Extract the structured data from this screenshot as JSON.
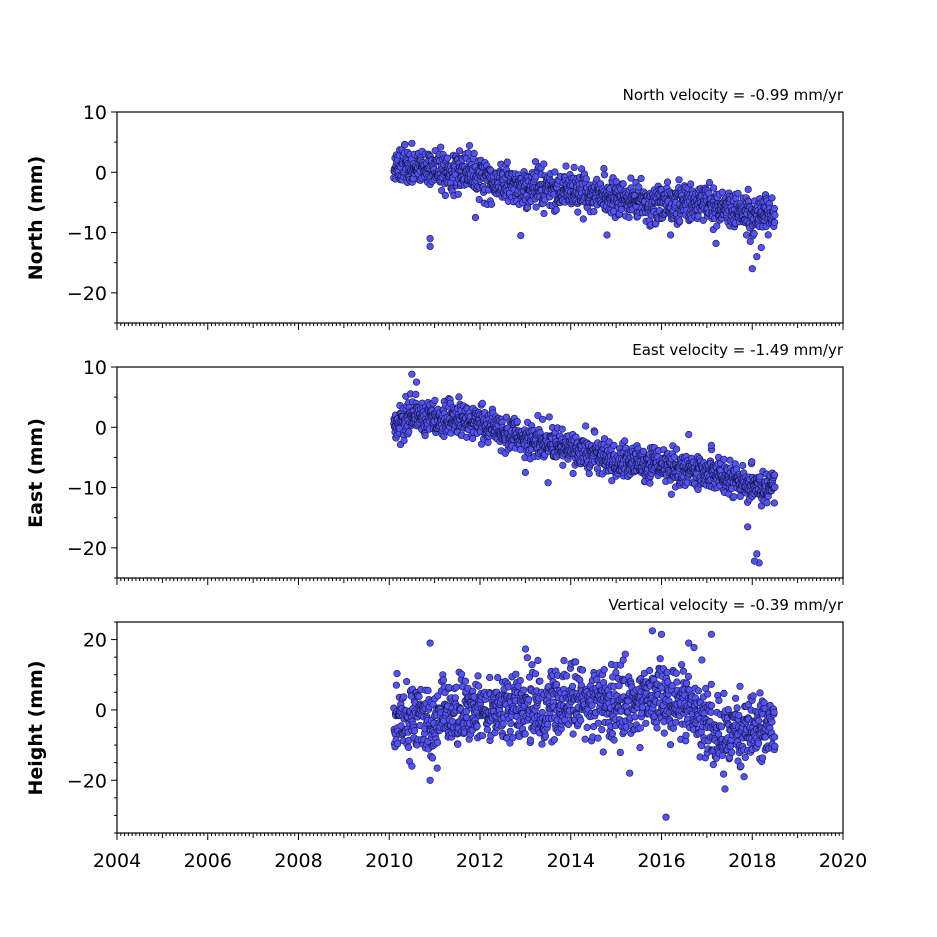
{
  "chart_data": [
    {
      "type": "scatter",
      "ylabel": "North (mm)",
      "annotation": "North velocity = -0.99 mm/yr",
      "xlim": [
        2004,
        2020
      ],
      "ylim": [
        -25,
        10
      ],
      "yticks": [
        10,
        0,
        -10,
        -20
      ],
      "ytick_labels": [
        "10",
        "0",
        "−10",
        "−20"
      ],
      "x_range": [
        2010.1,
        2018.5
      ],
      "series": [
        {
          "anchors": [
            [
              2010.1,
              0.8
            ],
            [
              2010.9,
              0.5
            ],
            [
              2011.6,
              0.2
            ],
            [
              2012.2,
              -1.5
            ],
            [
              2013.0,
              -2.5
            ],
            [
              2014.0,
              -3.3
            ],
            [
              2015.0,
              -4.3
            ],
            [
              2016.0,
              -5.3
            ],
            [
              2016.8,
              -4.8
            ],
            [
              2017.5,
              -6.5
            ],
            [
              2018.5,
              -7.3
            ]
          ],
          "scatter_sd": 1.6,
          "outliers": [
            [
              2010.5,
              4.8
            ],
            [
              2010.9,
              -11
            ],
            [
              2010.9,
              -12.3
            ],
            [
              2012.9,
              -10.5
            ],
            [
              2014.8,
              -10.4
            ],
            [
              2016.2,
              -10.4
            ],
            [
              2017.2,
              -11.8
            ],
            [
              2018.0,
              -16
            ],
            [
              2018.1,
              -14
            ],
            [
              2018.2,
              -12.5
            ],
            [
              2011.9,
              -7.5
            ]
          ]
        }
      ]
    },
    {
      "type": "scatter",
      "ylabel": "East (mm)",
      "annotation": "East velocity = -1.49 mm/yr",
      "xlim": [
        2004,
        2020
      ],
      "ylim": [
        -25,
        10
      ],
      "yticks": [
        10,
        0,
        -10,
        -20
      ],
      "ytick_labels": [
        "10",
        "0",
        "−10",
        "−20"
      ],
      "x_range": [
        2010.1,
        2018.5
      ],
      "series": [
        {
          "anchors": [
            [
              2010.1,
              -0.5
            ],
            [
              2010.5,
              2.5
            ],
            [
              2011.0,
              1.5
            ],
            [
              2012.0,
              0.5
            ],
            [
              2013.0,
              -2.0
            ],
            [
              2014.0,
              -3.5
            ],
            [
              2015.0,
              -5.5
            ],
            [
              2016.0,
              -6.5
            ],
            [
              2017.0,
              -7.5
            ],
            [
              2017.8,
              -9.0
            ],
            [
              2018.5,
              -10.5
            ]
          ],
          "scatter_sd": 1.4,
          "outliers": [
            [
              2010.5,
              8.8
            ],
            [
              2010.6,
              7.5
            ],
            [
              2013.0,
              -7.5
            ],
            [
              2013.5,
              -9.2
            ],
            [
              2016.6,
              -1.2
            ],
            [
              2017.1,
              -3.0
            ],
            [
              2018.1,
              -21
            ],
            [
              2018.15,
              -22.5
            ],
            [
              2018.05,
              -22.2
            ],
            [
              2017.9,
              -16.5
            ]
          ]
        }
      ]
    },
    {
      "type": "scatter",
      "ylabel": "Height (mm)",
      "annotation": "Vertical velocity = -0.39 mm/yr",
      "xlim": [
        2004,
        2020
      ],
      "ylim": [
        -35,
        25
      ],
      "yticks": [
        20,
        0,
        -20
      ],
      "ytick_labels": [
        "20",
        "0",
        "−20"
      ],
      "xticks": [
        2004,
        2006,
        2008,
        2010,
        2012,
        2014,
        2016,
        2018,
        2020
      ],
      "xtick_labels": [
        "2004",
        "2006",
        "2008",
        "2010",
        "2012",
        "2014",
        "2016",
        "2018",
        "2020"
      ],
      "x_range": [
        2010.1,
        2018.5
      ],
      "series": [
        {
          "anchors": [
            [
              2010.1,
              -2
            ],
            [
              2011.0,
              -3
            ],
            [
              2012.0,
              0
            ],
            [
              2013.0,
              1
            ],
            [
              2014.0,
              2
            ],
            [
              2015.0,
              1
            ],
            [
              2015.6,
              4
            ],
            [
              2016.0,
              3
            ],
            [
              2016.8,
              0
            ],
            [
              2017.3,
              -8
            ],
            [
              2017.8,
              -6
            ],
            [
              2018.5,
              -5
            ]
          ],
          "scatter_sd": 5.0,
          "outliers": [
            [
              2010.9,
              19
            ],
            [
              2010.9,
              -20
            ],
            [
              2015.8,
              22.5
            ],
            [
              2016.0,
              21.5
            ],
            [
              2016.6,
              19
            ],
            [
              2017.1,
              21.5
            ],
            [
              2016.1,
              -30.5
            ],
            [
              2017.4,
              -22.5
            ],
            [
              2015.3,
              -18
            ],
            [
              2010.5,
              -16
            ]
          ]
        }
      ]
    }
  ]
}
